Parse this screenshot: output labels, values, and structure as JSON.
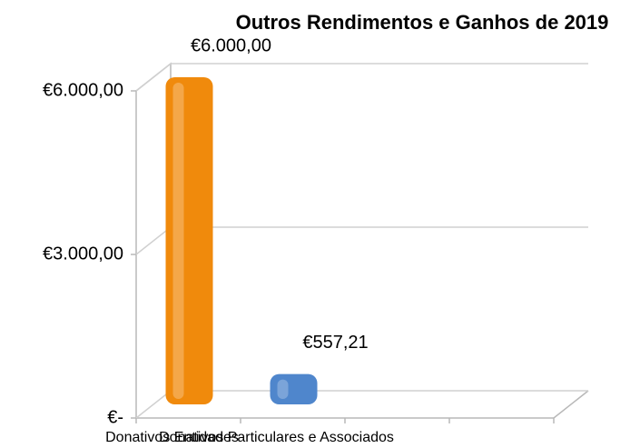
{
  "chart_data": {
    "type": "bar",
    "title": "Outros Rendimentos e Ganhos de 2019",
    "categories": [
      "Donativos Entidades",
      "Donativos Particulares e Associados",
      null,
      null
    ],
    "series": [
      {
        "name": null,
        "colors": [
          "#f08a0c",
          "#4f86cc",
          null,
          null
        ],
        "values": [
          6000,
          557.21,
          null,
          null
        ],
        "value_labels": [
          "€6.000,00",
          "€557,21",
          null,
          null
        ]
      }
    ],
    "ylim": [
      0,
      6000
    ],
    "yticks": [
      {
        "value": 0,
        "label": "€-"
      },
      {
        "value": 3000,
        "label": "€3.000,00"
      },
      {
        "value": 6000,
        "label": "€6.000,00"
      }
    ],
    "grid": true
  }
}
